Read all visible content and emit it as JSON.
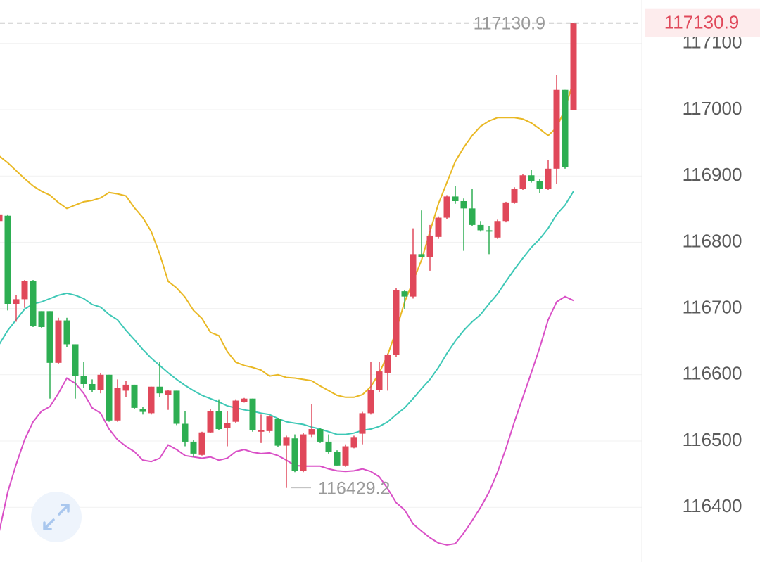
{
  "chart_data": {
    "type": "candlestick",
    "categories": [
      null,
      null,
      null,
      null,
      null,
      null,
      null,
      null,
      null,
      null,
      null,
      null,
      null,
      null,
      null,
      null,
      null,
      null,
      null,
      null,
      null,
      null,
      null,
      null,
      null,
      null,
      null,
      null,
      null,
      null,
      null,
      null,
      null,
      null,
      null,
      null,
      null,
      null,
      null,
      null,
      null,
      null,
      null,
      null,
      null,
      null,
      null,
      null,
      null,
      null,
      null,
      null,
      null,
      null,
      null,
      null,
      null,
      null,
      null,
      null,
      null,
      null,
      null,
      null,
      null,
      null,
      null,
      null,
      null
    ],
    "candles": {
      "up_color": "#e0485a",
      "down_color": "#2dae52",
      "open": [
        116832,
        116840,
        116707,
        116714,
        116741,
        116696,
        116696,
        116618,
        116682,
        116646,
        116598,
        116586,
        116577,
        116600,
        116531,
        116576,
        116585,
        116548,
        116542,
        116582,
        116570,
        116576,
        116526,
        116499,
        116479,
        116513,
        116545,
        116520,
        116529,
        116559,
        116564,
        116514,
        116515,
        116533,
        116493,
        116504,
        116455,
        116510,
        116518,
        116499,
        116483,
        116463,
        116490,
        116511,
        116542,
        116577,
        116603,
        116630,
        116726,
        116718,
        116782,
        116778,
        116808,
        116837,
        116869,
        116862,
        116851,
        116826,
        116818,
        116807,
        116832,
        116860,
        116881,
        116901,
        116892,
        116881,
        116911,
        117030,
        117000
      ],
      "high": [
        116885,
        116842,
        116720,
        116743,
        116743,
        116696,
        116696,
        116686,
        116686,
        116646,
        116619,
        116593,
        116603,
        116600,
        116593,
        116591,
        116585,
        116552,
        116582,
        116619,
        116577,
        116576,
        116545,
        116502,
        116514,
        116548,
        116563,
        116545,
        116563,
        116565,
        116564,
        116540,
        116539,
        116535,
        116508,
        116510,
        116512,
        116556,
        116520,
        116510,
        116486,
        116495,
        116508,
        116544,
        116619,
        116619,
        116632,
        116731,
        116728,
        116821,
        116848,
        116826,
        116839,
        116871,
        116885,
        116866,
        116880,
        116832,
        116824,
        116834,
        116861,
        116883,
        116903,
        116909,
        116895,
        116924,
        117052,
        117030,
        117130.9
      ],
      "low": [
        116826,
        116697,
        116680,
        116701,
        116672,
        116671,
        116564,
        116616,
        116642,
        116564,
        116580,
        116574,
        116572,
        116529,
        116529,
        116566,
        116548,
        116540,
        116540,
        116566,
        116547,
        116524,
        116492,
        116476,
        116478,
        116512,
        116516,
        116492,
        116527,
        116558,
        116514,
        116497,
        116513,
        116491,
        116429.2,
        116453,
        116453,
        116506,
        116497,
        116481,
        116463,
        116461,
        116489,
        116495,
        116540,
        116574,
        116576,
        116627,
        116699,
        116715,
        116777,
        116757,
        116805,
        116835,
        116858,
        116787,
        116824,
        116816,
        116782,
        116805,
        116830,
        116858,
        116879,
        116890,
        116874,
        116879,
        116888,
        116911,
        117000
      ],
      "close": [
        116842,
        116707,
        116714,
        116741,
        116674,
        116672,
        116618,
        116682,
        116646,
        116598,
        116586,
        116577,
        116600,
        116531,
        116580,
        116585,
        116550,
        116544,
        116582,
        116572,
        116576,
        116526,
        116499,
        116481,
        116513,
        116545,
        116518,
        116527,
        116561,
        116564,
        116516,
        116516,
        116537,
        116493,
        116506,
        116455,
        116510,
        116518,
        116499,
        116483,
        116463,
        116492,
        116506,
        116542,
        116577,
        116605,
        116630,
        116728,
        116718,
        116782,
        116778,
        116810,
        116837,
        116869,
        116862,
        116851,
        116826,
        116818,
        116816,
        116832,
        116860,
        116881,
        116901,
        116892,
        116881,
        116911,
        117030,
        116913,
        117130.9
      ]
    },
    "bands": [
      {
        "color": "#e9b824",
        "values": [
          116930,
          116920,
          116908,
          116896,
          116885,
          116877,
          116871,
          116860,
          116851,
          116856,
          116861,
          116863,
          116867,
          116875,
          116873,
          116870,
          116852,
          116837,
          116816,
          116782,
          116741,
          116731,
          116717,
          116697,
          116685,
          116664,
          116659,
          116635,
          116619,
          116614,
          116611,
          116607,
          116598,
          116600,
          116596,
          116595,
          116593,
          116591,
          116583,
          116576,
          116569,
          116566,
          116566,
          116570,
          116582,
          116603,
          116630,
          116667,
          116710,
          116741,
          116773,
          116816,
          116858,
          116890,
          116922,
          116943,
          116961,
          116975,
          116983,
          116988,
          116988,
          116988,
          116986,
          116980,
          116971,
          116961,
          116973,
          117001,
          117044
        ]
      },
      {
        "color": "#3ec8b6",
        "values": [
          116646,
          116667,
          116683,
          116699,
          116707,
          116710,
          116715,
          116720,
          116723,
          116720,
          116715,
          116706,
          116702,
          116691,
          116683,
          116667,
          116653,
          116638,
          116625,
          116614,
          116603,
          116593,
          116584,
          116576,
          116569,
          116564,
          116559,
          116553,
          116550,
          116547,
          116545,
          116542,
          116540,
          116534,
          116529,
          116527,
          116525,
          116521,
          116518,
          116514,
          116510,
          116510,
          116512,
          116516,
          116518,
          116522,
          116529,
          116540,
          116550,
          116564,
          116579,
          116593,
          116611,
          116632,
          116651,
          116667,
          116680,
          116691,
          116707,
          116722,
          116741,
          116759,
          116776,
          116792,
          116805,
          116821,
          116842,
          116856,
          116877
        ]
      },
      {
        "color": "#d94fc6",
        "values": [
          116364,
          116423,
          116465,
          116502,
          116529,
          116545,
          116552,
          116572,
          116595,
          116587,
          116572,
          116550,
          116542,
          116518,
          116502,
          116492,
          116484,
          116471,
          116469,
          116474,
          116494,
          116487,
          116478,
          116476,
          116474,
          116476,
          116471,
          116474,
          116484,
          116487,
          116483,
          116481,
          116482,
          116478,
          116471,
          116463,
          116462,
          116462,
          116462,
          116458,
          116455,
          116454,
          116455,
          116458,
          116454,
          116446,
          116428,
          116407,
          116396,
          116375,
          116364,
          116354,
          116346,
          116343,
          116345,
          116361,
          116380,
          116400,
          116423,
          116453,
          116489,
          116529,
          116566,
          116603,
          116641,
          116683,
          116710,
          116718,
          116712
        ]
      }
    ],
    "ylim": [
      116317.4,
      117165.6
    ],
    "yticks": [
      116400,
      116500,
      116600,
      116700,
      116800,
      116900,
      117000,
      117100
    ],
    "grid": true
  }
}
